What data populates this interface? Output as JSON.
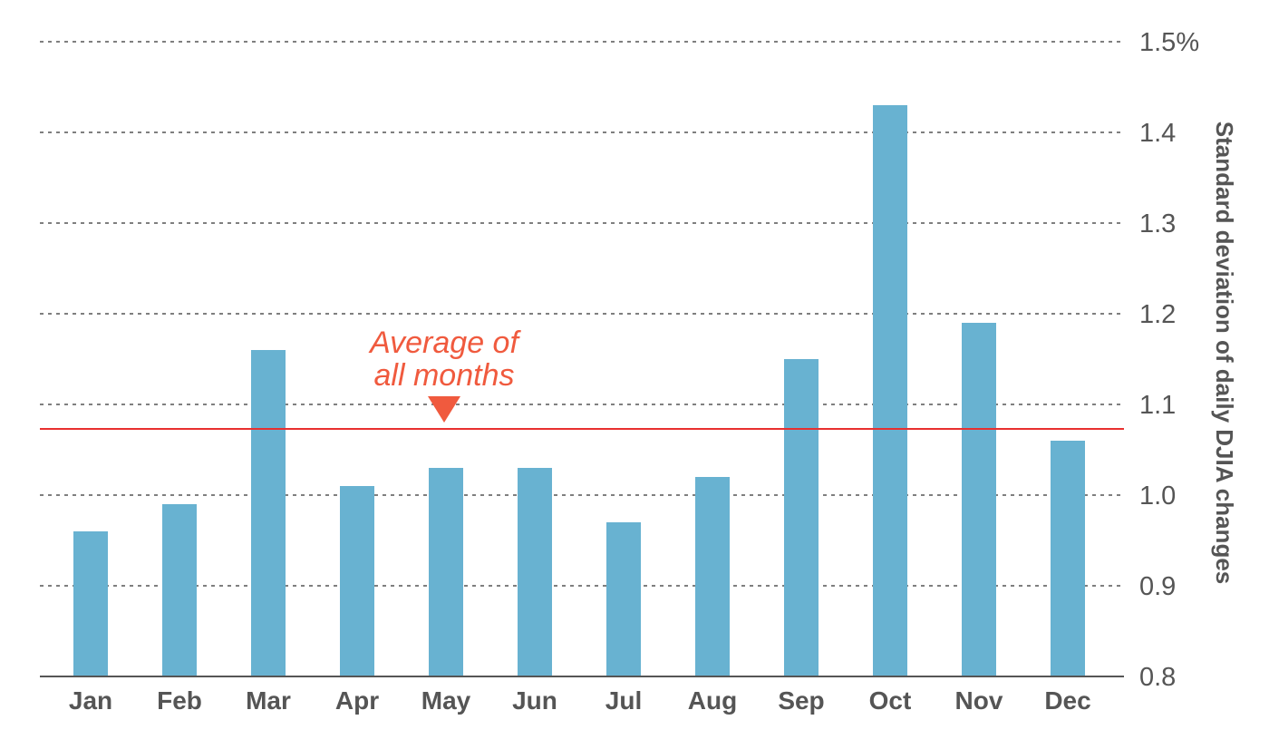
{
  "chart_data": {
    "type": "bar",
    "categories": [
      "Jan",
      "Feb",
      "Mar",
      "Apr",
      "May",
      "Jun",
      "Jul",
      "Aug",
      "Sep",
      "Oct",
      "Nov",
      "Dec"
    ],
    "values": [
      0.96,
      0.99,
      1.16,
      1.01,
      1.03,
      1.03,
      0.97,
      1.02,
      1.15,
      1.43,
      1.19,
      1.06
    ],
    "ylabel": "Standard deviation of daily DJIA changes",
    "ylim": [
      0.8,
      1.5
    ],
    "yticks": [
      0.8,
      0.9,
      1.0,
      1.1,
      1.2,
      1.3,
      1.4,
      1.5
    ],
    "ytick_labels": [
      "0.8",
      "0.9",
      "1.0",
      "1.1",
      "1.2",
      "1.3",
      "1.4",
      "1.5%"
    ],
    "y_axis_side": "right",
    "grid": "horizontal dotted",
    "reference_line": {
      "value": 1.073,
      "label_line1": "Average of",
      "label_line2": "all months"
    },
    "colors": {
      "bar": "#68b2d1",
      "reference": "#e8302f",
      "annotation": "#f05a3e",
      "text": "#555555",
      "grid": "#555555"
    }
  }
}
